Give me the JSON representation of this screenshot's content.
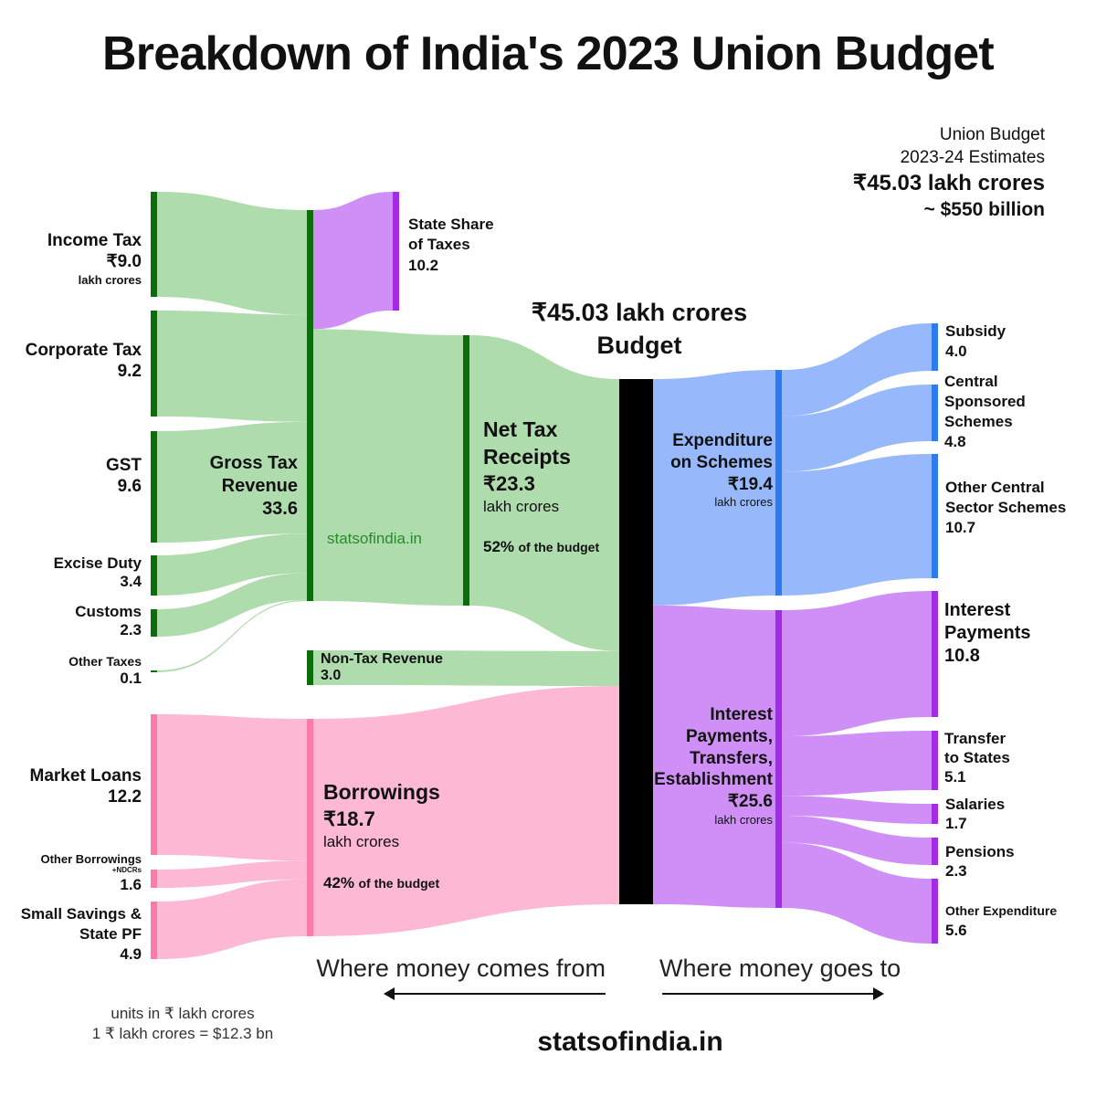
{
  "title": "Breakdown of India's 2023 Union Budget",
  "header": {
    "line1": "Union Budget",
    "line2": "2023-24 Estimates",
    "total": "₹45.03 lakh crores",
    "usd": "~ $550 billion"
  },
  "center_label": {
    "amount": "₹45.03 lakh crores",
    "name": "Budget"
  },
  "watermark": "statsofindia.in",
  "footer": {
    "comes_from": "Where money comes from",
    "goes_to": "Where money goes to",
    "units": "units in ₹ lakh crores",
    "conversion": "1 ₹ lakh crores = $12.3 bn",
    "site": "statsofindia.in"
  },
  "colors": {
    "tax_flow": "#aedcad",
    "tax_bar": "#0b6e0b",
    "state_flow": "#cf8ff6",
    "purple_bar": "#a32be8",
    "borrow_flow": "#fdb9d4",
    "borrow_bar": "#fb7aa7",
    "scheme_flow": "#97b9fb",
    "scheme_bar": "#2d7af2",
    "interest_flow": "#cf8ff6",
    "budget_bar": "#000000"
  },
  "chart_data": {
    "type": "sankey",
    "title": "Breakdown of India's 2023 Union Budget",
    "units": "₹ lakh crores",
    "nodes": [
      {
        "id": "income_tax",
        "name": "Income Tax",
        "value": 9.0,
        "value_label": "₹9.0",
        "unit": "lakh crores",
        "bar": "tax_bar"
      },
      {
        "id": "corporate_tax",
        "name": "Corporate Tax",
        "value": 9.2,
        "value_label": "9.2",
        "bar": "tax_bar"
      },
      {
        "id": "gst",
        "name": "GST",
        "value": 9.6,
        "value_label": "9.6",
        "bar": "tax_bar"
      },
      {
        "id": "excise_duty",
        "name": "Excise Duty",
        "value": 3.4,
        "value_label": "3.4",
        "bar": "tax_bar"
      },
      {
        "id": "customs",
        "name": "Customs",
        "value": 2.3,
        "value_label": "2.3",
        "bar": "tax_bar"
      },
      {
        "id": "other_taxes",
        "name": "Other Taxes",
        "value": 0.1,
        "value_label": "0.1",
        "bar": "tax_bar"
      },
      {
        "id": "market_loans",
        "name": "Market Loans",
        "value": 12.2,
        "value_label": "12.2",
        "bar": "borrow_bar"
      },
      {
        "id": "other_borrowings",
        "name": "Other Borrowings",
        "note": "+NDCRs",
        "value": 1.6,
        "value_label": "1.6",
        "bar": "borrow_bar"
      },
      {
        "id": "small_savings",
        "name": "Small Savings &\nState PF",
        "value": 4.9,
        "value_label": "4.9",
        "bar": "borrow_bar"
      },
      {
        "id": "gross_tax",
        "name": "Gross Tax\nRevenue",
        "value": 33.6,
        "value_label": "33.6",
        "bar": "tax_bar"
      },
      {
        "id": "state_share",
        "name": "State Share\nof Taxes",
        "value": 10.2,
        "value_label": "10.2",
        "bar": "purple_bar"
      },
      {
        "id": "net_tax",
        "name": "Net Tax\nReceipts",
        "value": 23.3,
        "value_label": "₹23.3",
        "unit": "lakh crores",
        "share": "52%",
        "share_suffix": "of the budget",
        "bar": "tax_bar"
      },
      {
        "id": "non_tax",
        "name": "Non-Tax Revenue",
        "value": 3.0,
        "value_label": "3.0",
        "bar": "tax_bar"
      },
      {
        "id": "borrowings",
        "name": "Borrowings",
        "value": 18.7,
        "value_label": "₹18.7",
        "unit": "lakh crores",
        "share": "42%",
        "share_suffix": "of the budget",
        "bar": "borrow_bar"
      },
      {
        "id": "budget",
        "name": "Budget",
        "value": 45.03,
        "bar": "budget_bar"
      },
      {
        "id": "exp_schemes",
        "name": "Expenditure\non Schemes",
        "value": 19.4,
        "value_label": "₹19.4",
        "unit": "lakh crores",
        "bar": "scheme_bar"
      },
      {
        "id": "interest_group",
        "name": "Interest\nPayments,\nTransfers,\nEstablishment",
        "value": 25.6,
        "value_label": "₹25.6",
        "unit": "lakh crores",
        "bar": "purple_bar"
      },
      {
        "id": "subsidy",
        "name": "Subsidy",
        "value": 4.0,
        "value_label": "4.0",
        "bar": "scheme_bar"
      },
      {
        "id": "css",
        "name": "Central\nSponsored\nSchemes",
        "value": 4.8,
        "value_label": "4.8",
        "bar": "scheme_bar"
      },
      {
        "id": "other_central",
        "name": "Other Central\nSector Schemes",
        "value": 10.7,
        "value_label": "10.7",
        "bar": "scheme_bar"
      },
      {
        "id": "interest_payments",
        "name": "Interest\nPayments",
        "value": 10.8,
        "value_label": "10.8",
        "bar": "purple_bar"
      },
      {
        "id": "transfer_states",
        "name": "Transfer\nto States",
        "value": 5.1,
        "value_label": "5.1",
        "bar": "purple_bar"
      },
      {
        "id": "salaries",
        "name": "Salaries",
        "value": 1.7,
        "value_label": "1.7",
        "bar": "purple_bar"
      },
      {
        "id": "pensions",
        "name": "Pensions",
        "value": 2.3,
        "value_label": "2.3",
        "bar": "purple_bar"
      },
      {
        "id": "other_expenditure",
        "name": "Other Expenditure",
        "value": 5.6,
        "value_label": "5.6",
        "bar": "purple_bar"
      }
    ],
    "links": [
      {
        "source": 0,
        "target": 9,
        "value": 9.0,
        "color": "tax_flow"
      },
      {
        "source": 1,
        "target": 9,
        "value": 9.2,
        "color": "tax_flow"
      },
      {
        "source": 2,
        "target": 9,
        "value": 9.6,
        "color": "tax_flow"
      },
      {
        "source": 3,
        "target": 9,
        "value": 3.4,
        "color": "tax_flow"
      },
      {
        "source": 4,
        "target": 9,
        "value": 2.3,
        "color": "tax_flow"
      },
      {
        "source": 5,
        "target": 9,
        "value": 0.1,
        "color": "tax_flow"
      },
      {
        "source": 6,
        "target": 13,
        "value": 12.2,
        "color": "borrow_flow"
      },
      {
        "source": 7,
        "target": 13,
        "value": 1.6,
        "color": "borrow_flow"
      },
      {
        "source": 8,
        "target": 13,
        "value": 4.9,
        "color": "borrow_flow"
      },
      {
        "source": 9,
        "target": 10,
        "value": 10.2,
        "color": "state_flow"
      },
      {
        "source": 9,
        "target": 11,
        "value": 23.3,
        "color": "tax_flow"
      },
      {
        "source": 11,
        "target": 14,
        "value": 23.3,
        "color": "tax_flow"
      },
      {
        "source": 12,
        "target": 14,
        "value": 3.0,
        "color": "tax_flow"
      },
      {
        "source": 13,
        "target": 14,
        "value": 18.7,
        "color": "borrow_flow"
      },
      {
        "source": 14,
        "target": 15,
        "value": 19.4,
        "color": "scheme_flow"
      },
      {
        "source": 14,
        "target": 16,
        "value": 25.6,
        "color": "interest_flow"
      },
      {
        "source": 15,
        "target": 17,
        "value": 4.0,
        "color": "scheme_flow"
      },
      {
        "source": 15,
        "target": 18,
        "value": 4.8,
        "color": "scheme_flow"
      },
      {
        "source": 15,
        "target": 19,
        "value": 10.7,
        "color": "scheme_flow"
      },
      {
        "source": 16,
        "target": 20,
        "value": 10.8,
        "color": "interest_flow"
      },
      {
        "source": 16,
        "target": 21,
        "value": 5.1,
        "color": "interest_flow"
      },
      {
        "source": 16,
        "target": 22,
        "value": 1.7,
        "color": "interest_flow"
      },
      {
        "source": 16,
        "target": 23,
        "value": 2.3,
        "color": "interest_flow"
      },
      {
        "source": 16,
        "target": 24,
        "value": 5.6,
        "color": "interest_flow"
      }
    ]
  }
}
